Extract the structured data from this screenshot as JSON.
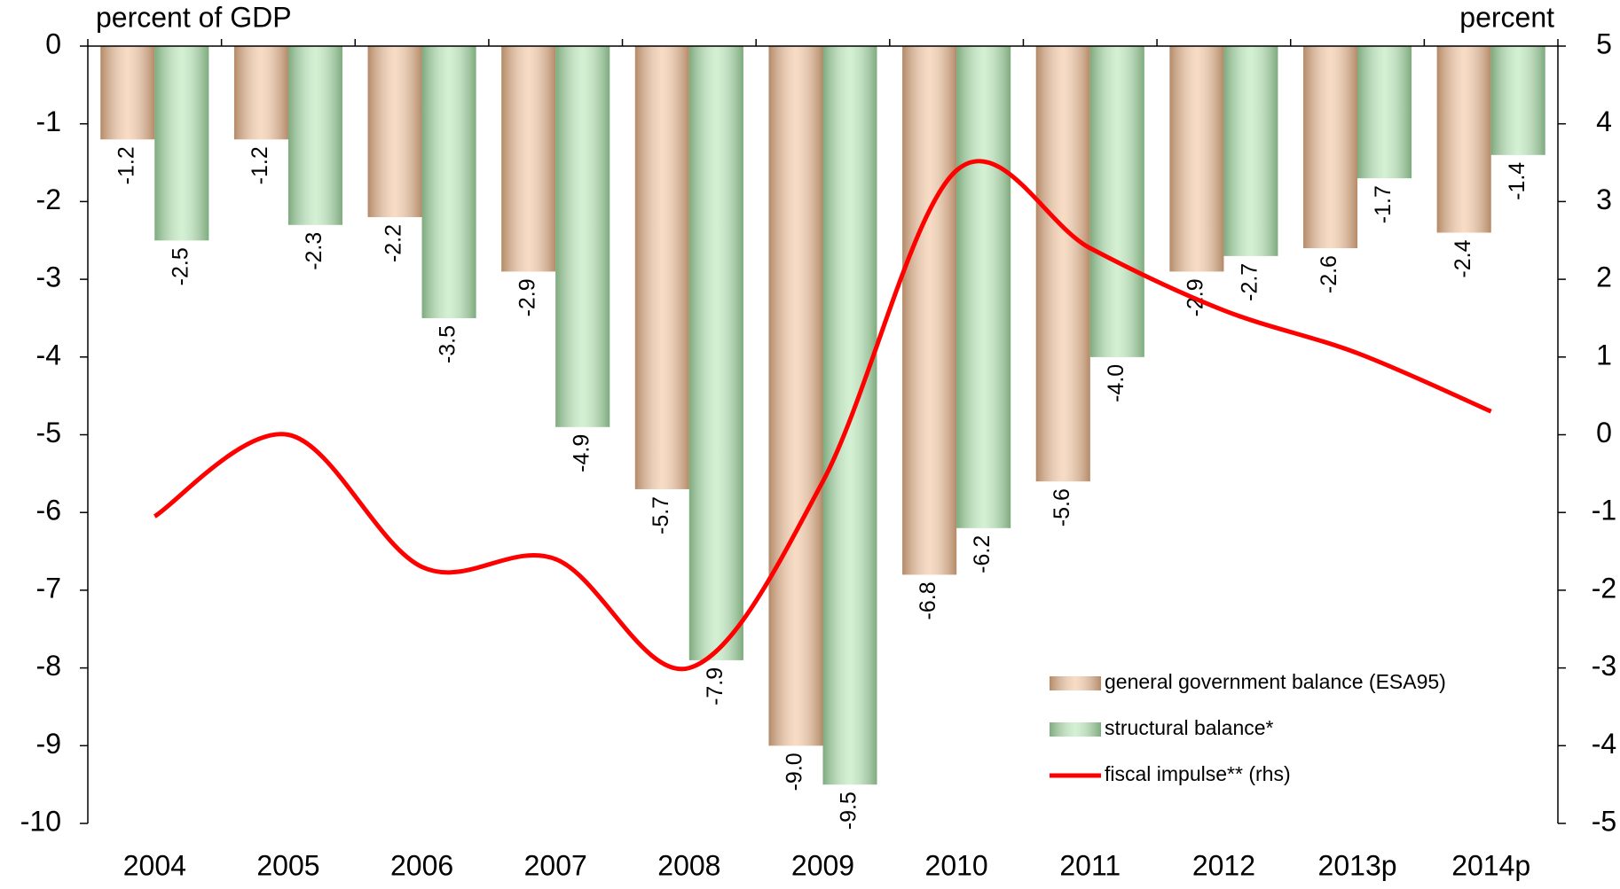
{
  "chart_data": {
    "type": "bar_line",
    "y_label": "percent of GDP",
    "y2_label": "percent",
    "categories": [
      "2004",
      "2005",
      "2006",
      "2007",
      "2008",
      "2009",
      "2010",
      "2011",
      "2012",
      "2013p",
      "2014p"
    ],
    "series": [
      {
        "name": "general government balance (ESA95)",
        "type": "bar",
        "color": "#f0b88a",
        "values": [
          -1.2,
          -1.2,
          -2.2,
          -2.9,
          -5.7,
          -9.0,
          -6.8,
          -5.6,
          -2.9,
          -2.6,
          -2.4
        ],
        "value_labels": [
          "-1.2",
          "-1.2",
          "-2.2",
          "-2.9",
          "-5.7",
          "-9.0",
          "-6.8",
          "-5.6",
          "-2.9",
          "-2.6",
          "-2.4"
        ]
      },
      {
        "name": "structural balance*",
        "type": "bar",
        "color": "#a8e2a8",
        "values": [
          -2.5,
          -2.3,
          -3.5,
          -4.9,
          -7.9,
          -9.5,
          -6.2,
          -4.0,
          -2.7,
          -1.7,
          -1.4
        ],
        "value_labels": [
          "-2.5",
          "-2.3",
          "-3.5",
          "-4.9",
          "-7.9",
          "-9.5",
          "-6.2",
          "-4.0",
          "-2.7",
          "-1.7",
          "-1.4"
        ]
      },
      {
        "name": "fiscal impulse** (rhs)",
        "type": "line",
        "axis": "y2",
        "color": "#ff0000",
        "values": [
          -1.05,
          0.0,
          -1.7,
          -1.6,
          -3.0,
          -0.6,
          3.4,
          2.4,
          1.6,
          1.05,
          0.3
        ]
      }
    ],
    "ylim": [
      -10,
      0
    ],
    "yticks": [
      0,
      -1,
      -2,
      -3,
      -4,
      -5,
      -6,
      -7,
      -8,
      -9,
      -10
    ],
    "y2lim": [
      -5,
      5
    ],
    "y2ticks": [
      5,
      4,
      3,
      2,
      1,
      0,
      -1,
      -2,
      -3,
      -4,
      -5
    ],
    "legend": "lower-right"
  }
}
